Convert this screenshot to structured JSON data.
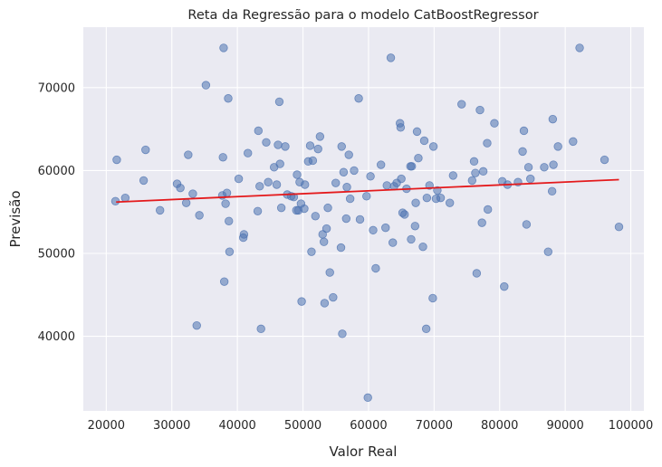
{
  "chart_data": {
    "type": "scatter",
    "title": "Reta da Regressão para o modelo CatBoostRegressor",
    "xlabel": "Valor Real",
    "ylabel": "Previsão",
    "xlim": [
      16500,
      102000
    ],
    "ylim": [
      31000,
      77300
    ],
    "xticks": [
      20000,
      30000,
      40000,
      50000,
      60000,
      70000,
      80000,
      90000,
      100000
    ],
    "xtick_labels": [
      "20000",
      "30000",
      "40000",
      "50000",
      "60000",
      "70000",
      "80000",
      "90000",
      "100000"
    ],
    "yticks": [
      40000,
      50000,
      60000,
      70000
    ],
    "ytick_labels": [
      "40000",
      "50000",
      "60000",
      "70000"
    ],
    "grid": true,
    "point_color": "#4c72b0",
    "line_color": "#e41a1c",
    "background": "#eaeaf2",
    "regression_line": {
      "x": [
        21500,
        98200
      ],
      "y": [
        56200,
        58900
      ]
    },
    "points": [
      [
        21400,
        56300
      ],
      [
        21600,
        61300
      ],
      [
        22900,
        56700
      ],
      [
        25700,
        58800
      ],
      [
        26000,
        62500
      ],
      [
        28200,
        55200
      ],
      [
        30800,
        58400
      ],
      [
        31300,
        57900
      ],
      [
        32200,
        56100
      ],
      [
        32500,
        61900
      ],
      [
        33200,
        57200
      ],
      [
        33800,
        41300
      ],
      [
        34200,
        54600
      ],
      [
        35200,
        70300
      ],
      [
        37700,
        57000
      ],
      [
        37800,
        61600
      ],
      [
        37900,
        74800
      ],
      [
        38000,
        46600
      ],
      [
        38200,
        56000
      ],
      [
        38400,
        57300
      ],
      [
        38600,
        68700
      ],
      [
        38700,
        53900
      ],
      [
        38800,
        50200
      ],
      [
        40200,
        59000
      ],
      [
        40900,
        51900
      ],
      [
        41000,
        52300
      ],
      [
        41600,
        62100
      ],
      [
        43100,
        55100
      ],
      [
        43200,
        64800
      ],
      [
        43400,
        58100
      ],
      [
        43600,
        40900
      ],
      [
        44400,
        63400
      ],
      [
        44700,
        58600
      ],
      [
        45600,
        60400
      ],
      [
        46000,
        58300
      ],
      [
        46200,
        63100
      ],
      [
        46400,
        68300
      ],
      [
        46500,
        60800
      ],
      [
        46700,
        55500
      ],
      [
        47300,
        62900
      ],
      [
        47600,
        57100
      ],
      [
        48200,
        56900
      ],
      [
        48600,
        56800
      ],
      [
        49000,
        55200
      ],
      [
        49100,
        59500
      ],
      [
        49300,
        55200
      ],
      [
        49500,
        58600
      ],
      [
        49700,
        56000
      ],
      [
        49800,
        44200
      ],
      [
        50200,
        55400
      ],
      [
        50300,
        58300
      ],
      [
        50800,
        61100
      ],
      [
        51100,
        63000
      ],
      [
        51300,
        50200
      ],
      [
        51500,
        61200
      ],
      [
        51900,
        54500
      ],
      [
        52300,
        62600
      ],
      [
        52600,
        64100
      ],
      [
        53000,
        52300
      ],
      [
        53200,
        51400
      ],
      [
        53300,
        44000
      ],
      [
        53600,
        53000
      ],
      [
        53800,
        55500
      ],
      [
        54100,
        47700
      ],
      [
        54600,
        44700
      ],
      [
        55000,
        58500
      ],
      [
        55800,
        50700
      ],
      [
        55900,
        62900
      ],
      [
        56000,
        40300
      ],
      [
        56200,
        59800
      ],
      [
        56600,
        54200
      ],
      [
        56700,
        58000
      ],
      [
        57000,
        61900
      ],
      [
        57200,
        56600
      ],
      [
        57800,
        60000
      ],
      [
        58500,
        68700
      ],
      [
        58700,
        54100
      ],
      [
        59700,
        56900
      ],
      [
        59900,
        32600
      ],
      [
        60300,
        59300
      ],
      [
        60700,
        52800
      ],
      [
        61100,
        48200
      ],
      [
        61900,
        60700
      ],
      [
        62600,
        53100
      ],
      [
        62800,
        58200
      ],
      [
        63400,
        73600
      ],
      [
        63700,
        51300
      ],
      [
        63900,
        58100
      ],
      [
        64300,
        58500
      ],
      [
        64800,
        65700
      ],
      [
        64900,
        65200
      ],
      [
        65000,
        59000
      ],
      [
        65200,
        54900
      ],
      [
        65500,
        54700
      ],
      [
        65800,
        57800
      ],
      [
        66400,
        60500
      ],
      [
        66500,
        51700
      ],
      [
        66600,
        60500
      ],
      [
        67100,
        53300
      ],
      [
        67200,
        56100
      ],
      [
        67400,
        64700
      ],
      [
        67600,
        61500
      ],
      [
        68300,
        50800
      ],
      [
        68500,
        63600
      ],
      [
        68800,
        40900
      ],
      [
        68900,
        56700
      ],
      [
        69300,
        58200
      ],
      [
        69800,
        44600
      ],
      [
        69900,
        62900
      ],
      [
        70300,
        56600
      ],
      [
        70500,
        57600
      ],
      [
        71000,
        56700
      ],
      [
        72400,
        56100
      ],
      [
        72900,
        59400
      ],
      [
        74200,
        68000
      ],
      [
        75800,
        58800
      ],
      [
        76100,
        61100
      ],
      [
        76300,
        59700
      ],
      [
        76500,
        47600
      ],
      [
        77000,
        67300
      ],
      [
        77300,
        53700
      ],
      [
        77500,
        59900
      ],
      [
        78100,
        63300
      ],
      [
        78200,
        55300
      ],
      [
        79200,
        65700
      ],
      [
        80400,
        58700
      ],
      [
        80700,
        46000
      ],
      [
        81200,
        58300
      ],
      [
        82800,
        58600
      ],
      [
        83500,
        62300
      ],
      [
        83700,
        64800
      ],
      [
        84100,
        53500
      ],
      [
        84400,
        60400
      ],
      [
        84700,
        59000
      ],
      [
        86800,
        60400
      ],
      [
        87400,
        50200
      ],
      [
        88000,
        57500
      ],
      [
        88100,
        66200
      ],
      [
        88200,
        60700
      ],
      [
        88900,
        62900
      ],
      [
        91200,
        63500
      ],
      [
        92200,
        74800
      ],
      [
        96000,
        61300
      ],
      [
        98200,
        53200
      ]
    ]
  }
}
